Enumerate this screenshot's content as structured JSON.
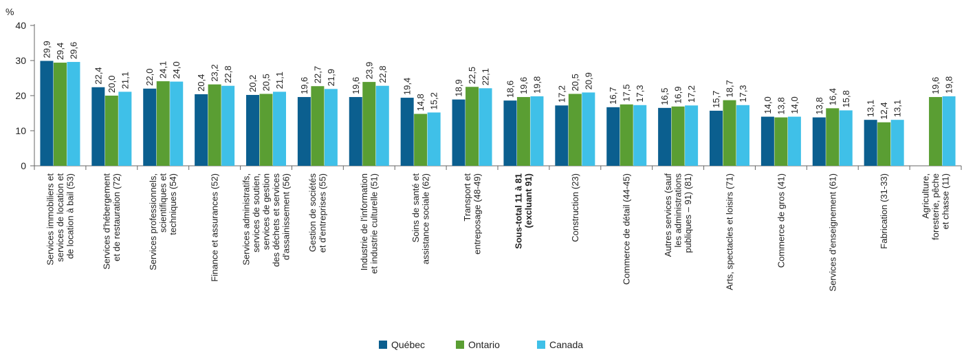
{
  "colors": {
    "quebec": "#0b5f8f",
    "ontario": "#5a9e33",
    "canada": "#3fc0e8",
    "axis": "#666666"
  },
  "chart_data": {
    "type": "bar",
    "ylabel": "%",
    "ylim": [
      0,
      40
    ],
    "yticks": [
      0,
      10,
      20,
      30,
      40
    ],
    "grid": false,
    "legend_position": "bottom-center",
    "categories": [
      "Services immobiliers et services de location et de location à bail (53)",
      "Services d'hébergement et de restauration (72)",
      "Services professionnels, scientifiques et techniques (54)",
      "Finance et assurances (52)",
      "Services administratifs, services de soutien, services de gestion des déchets et services d'assainissement (56)",
      "Gestion de sociétés et d'entreprises (55)",
      "Industrie de l'information et industrie culturelle (51)",
      "Soins de santé et assistance sociale (62)",
      "Transport et entreposage (48-49)",
      "Sous-total 11 à 81 (excluant 91)",
      "Construction (23)",
      "Commerce de détail (44-45)",
      "Autres services (sauf les administrations publiques – 91) (81)",
      "Arts, spectacles et loisirs (71)",
      "Commerce de gros (41)",
      "Services d'enseignement (61)",
      "Fabrication (31-33)",
      "Agriculture, foresterie, pêche et chasse (11)"
    ],
    "category_lines": [
      [
        "Services immobiliers et",
        "services de location et",
        "de location à bail (53)"
      ],
      [
        "Services d'hébergement",
        "et de restauration (72)"
      ],
      [
        "Services professionnels,",
        "scientifiques et",
        "techniques (54)"
      ],
      [
        "Finance et assurances (52)"
      ],
      [
        "Services administratifs,",
        "services de soutien,",
        "services de gestion",
        "des déchets et services",
        "d'assainissement (56)"
      ],
      [
        "Gestion de sociétés",
        "et d'entreprises (55)"
      ],
      [
        "Industrie de l'information",
        "et industrie culturelle (51)"
      ],
      [
        "Soins de santé et",
        "assistance sociale (62)"
      ],
      [
        "Transport et",
        "entreposage (48-49)"
      ],
      [
        "Sous-total 11 à 81",
        "(excluant 91)"
      ],
      [
        "Construction (23)"
      ],
      [
        "Commerce de détail (44-45)"
      ],
      [
        "Autres services (sauf",
        "les administrations",
        "publiques – 91) (81)"
      ],
      [
        "Arts, spectacles et loisirs (71)"
      ],
      [
        "Commerce de gros (41)"
      ],
      [
        "Services d'enseignement (61)"
      ],
      [
        "Fabrication (31-33)"
      ],
      [
        "Agriculture,",
        "foresterie, pêche",
        "et chasse (11)"
      ]
    ],
    "bold_category": 9,
    "series": [
      {
        "name": "Québec",
        "color": "#0b5f8f",
        "values": [
          29.9,
          22.4,
          22.0,
          20.4,
          20.2,
          19.6,
          19.6,
          19.4,
          18.9,
          18.6,
          17.2,
          16.7,
          16.5,
          15.7,
          14.0,
          13.8,
          13.1,
          null
        ],
        "labels": [
          "29,9",
          "22,4",
          "22,0",
          "20,4",
          "20,2",
          "19,6",
          "19,6",
          "19,4",
          "18,9",
          "18,6",
          "17,2",
          "16,7",
          "16,5",
          "15,7",
          "14,0",
          "13,8",
          "13,1",
          ""
        ]
      },
      {
        "name": "Ontario",
        "color": "#5a9e33",
        "values": [
          29.4,
          20.0,
          24.1,
          23.2,
          20.5,
          22.7,
          23.9,
          14.8,
          22.5,
          19.6,
          20.5,
          17.5,
          16.9,
          18.7,
          13.8,
          16.4,
          12.4,
          19.6
        ],
        "labels": [
          "29,4",
          "20,0",
          "24,1",
          "23,2",
          "20,5",
          "22,7",
          "23,9",
          "14,8",
          "22,5",
          "19,6",
          "20,5",
          "17,5",
          "16,9",
          "18,7",
          "13,8",
          "16,4",
          "12,4",
          "19,6"
        ]
      },
      {
        "name": "Canada",
        "color": "#3fc0e8",
        "values": [
          29.6,
          21.1,
          24.0,
          22.8,
          21.1,
          21.9,
          22.8,
          15.2,
          22.1,
          19.8,
          20.9,
          17.3,
          17.2,
          17.3,
          14.0,
          15.8,
          13.1,
          19.8
        ],
        "labels": [
          "29,6",
          "21,1",
          "24,0",
          "22,8",
          "21,1",
          "21,9",
          "22,8",
          "15,2",
          "22,1",
          "19,8",
          "20,9",
          "17,3",
          "17,2",
          "17,3",
          "14,0",
          "15,8",
          "13,1",
          "19,8"
        ]
      }
    ]
  }
}
